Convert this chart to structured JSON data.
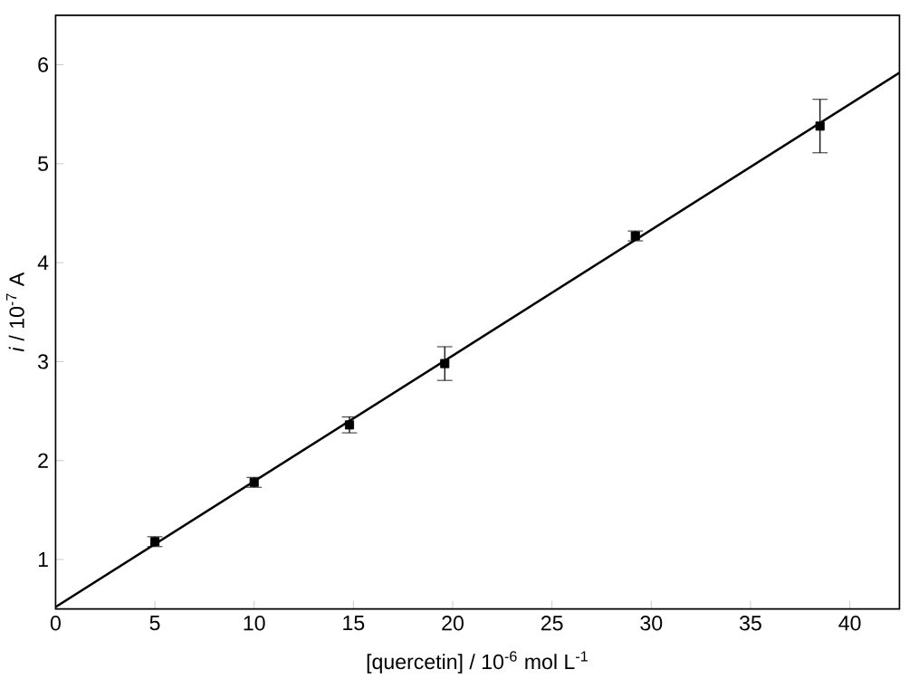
{
  "chart_data": {
    "type": "scatter",
    "xlabel": "[quercetin] / 10$^{-6}$ mol L$^{-1}$",
    "ylabel": "*i* / 10$^{-7}$ A",
    "xlim": [
      0,
      42.5
    ],
    "ylim": [
      0.5,
      6.5
    ],
    "xticks": [
      0,
      5,
      10,
      15,
      20,
      25,
      30,
      35,
      40
    ],
    "yticks": [
      1,
      2,
      3,
      4,
      5,
      6
    ],
    "marker": "square",
    "series": [
      {
        "color": "#000000",
        "x": [
          5,
          10,
          14.8,
          19.6,
          29.2,
          38.5
        ],
        "values": [
          1.18,
          1.78,
          2.36,
          2.98,
          4.27,
          5.38
        ],
        "errors": [
          0.05,
          0.05,
          0.08,
          0.17,
          0.05,
          0.27
        ]
      },
      {
        "type": "line",
        "color": "#000000",
        "x": [
          0,
          42.5
        ],
        "values": [
          0.52,
          5.92
        ],
        "line_style": "solid",
        "marker": "none"
      }
    ]
  }
}
